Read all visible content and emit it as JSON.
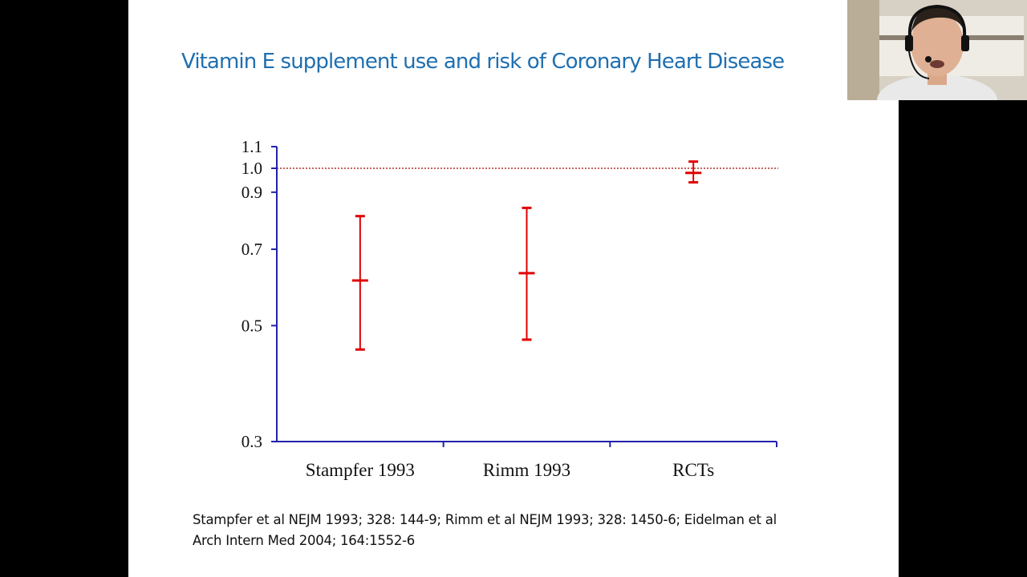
{
  "slide": {
    "title": "Vitamin E supplement use and risk of Coronary Heart Disease",
    "citation_lines": [
      "Stampfer et al NEJM 1993; 328: 144-9;  Rimm et al NEJM 1993; 328: 1450-6;  Eidelman et al",
      "Arch Intern Med 2004; 164:1552-6"
    ]
  },
  "chart_data": {
    "type": "errorbar",
    "title": "",
    "xlabel": "",
    "ylabel": "",
    "yscale": "log",
    "ylim": [
      0.3,
      1.1
    ],
    "yticks": [
      0.3,
      0.5,
      0.7,
      0.9,
      1.0,
      1.1
    ],
    "ytick_labels": [
      "0.3",
      "0.5",
      "0.7",
      "0.9",
      "1.0",
      "1.1"
    ],
    "reference_line": {
      "y": 1.0,
      "style": "dotted",
      "color": "#b03030"
    },
    "categories": [
      "Stampfer 1993",
      "Rimm 1993",
      "RCTs"
    ],
    "series": [
      {
        "estimate": [
          0.61,
          0.63,
          0.98
        ],
        "lower": [
          0.45,
          0.47,
          0.94
        ],
        "upper": [
          0.81,
          0.84,
          1.03
        ]
      }
    ],
    "colors": {
      "marker": "#e00000",
      "axis": "#2222aa"
    },
    "grid": false,
    "legend": "none"
  },
  "webcam": {
    "icon": "presenter-webcam-icon"
  }
}
